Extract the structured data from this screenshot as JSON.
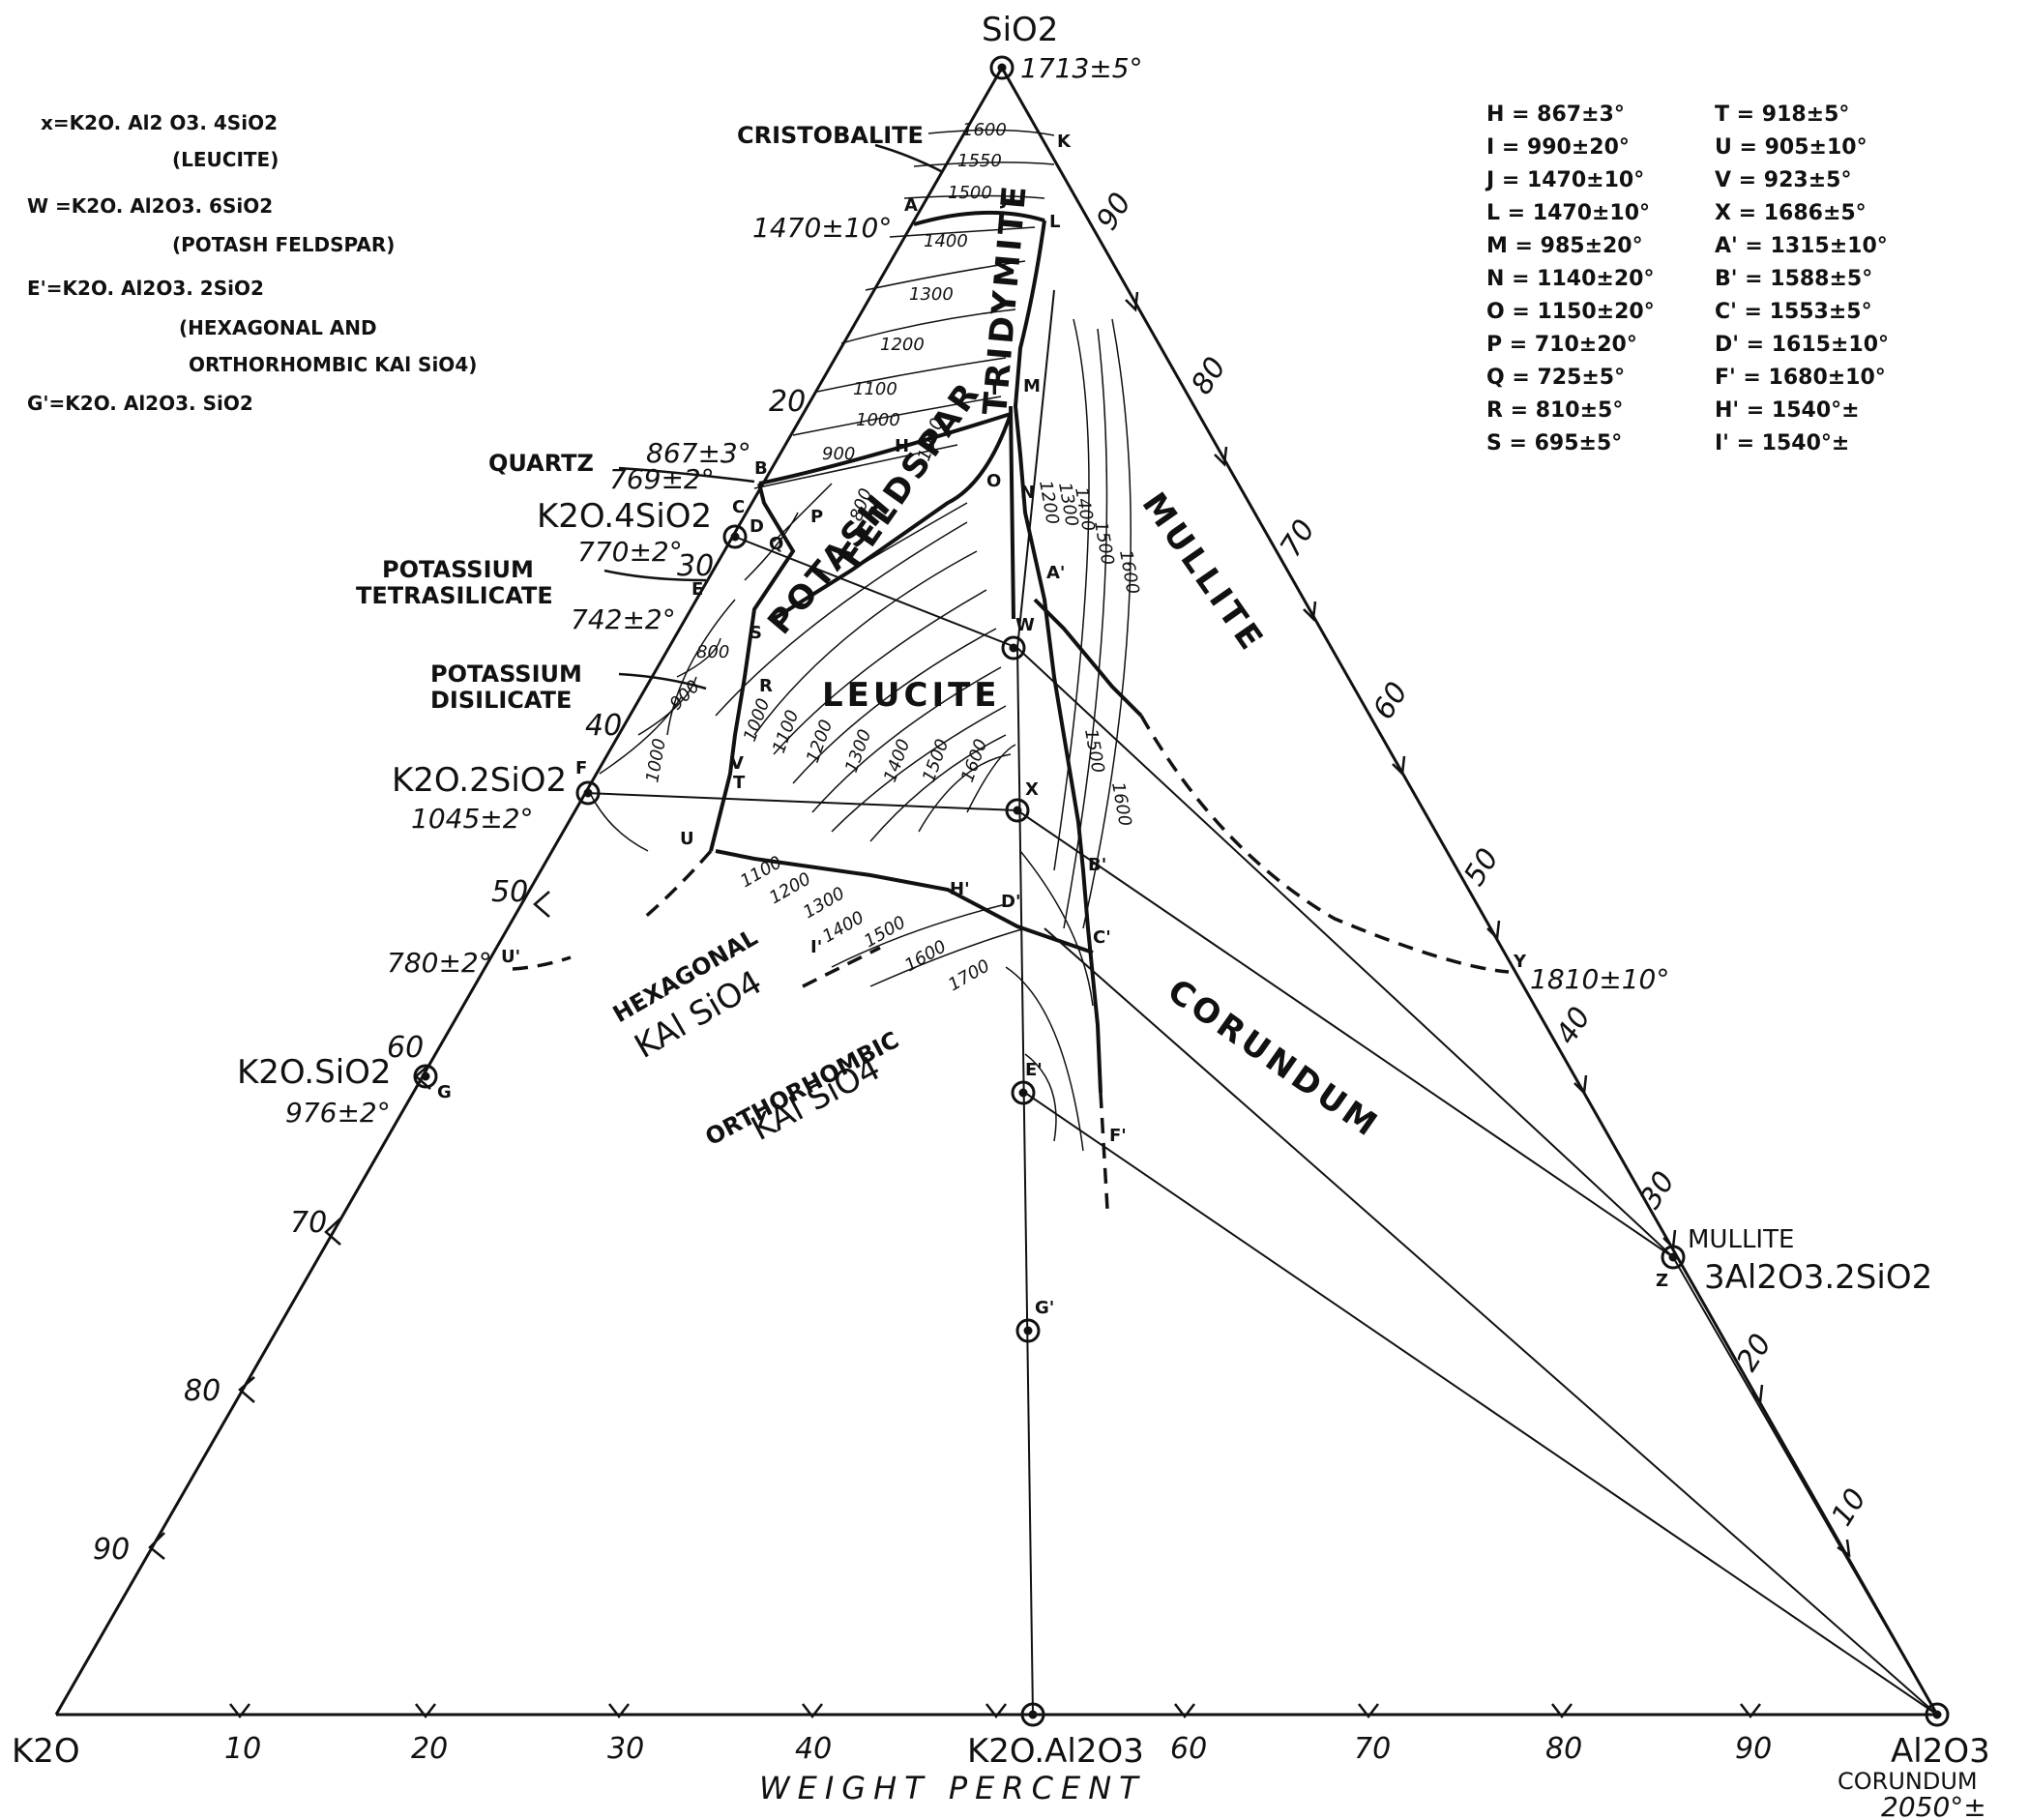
{
  "diagram": {
    "vertices": {
      "top": "SiO2",
      "top_temp": "1713±5°",
      "left": "K2O",
      "right": "Al2O3",
      "right_sub": "CORUNDUM",
      "right_temp": "2050°±"
    },
    "footer": "WEIGHT   PERCENT",
    "bottom_compound": "K2O.Al2O3",
    "ticks": [
      "10",
      "20",
      "30",
      "40",
      "50",
      "60",
      "70",
      "80",
      "90"
    ],
    "compounds": {
      "k2o_4sio2": "K2O.4SiO2",
      "k2o_2sio2": "K2O.2SiO2",
      "k2o_2sio2_temp": "1045±2°",
      "k2o_sio2": "K2O.SiO2",
      "k2o_sio2_temp": "976±2°",
      "mullite_name": "MULLITE",
      "mullite_formula": "3Al2O3.2SiO2"
    },
    "labels": {
      "cristobalite": "CRISTOBALITE",
      "cristo_temp": "1470±10°",
      "quartz": "QUARTZ",
      "quartz_t1": "867±3°",
      "quartz_t2": "769±2°",
      "k_tetra_1": "POTASSIUM",
      "k_tetra_2": "TETRASILICATE",
      "t_770": "770±2°",
      "t_742": "742±2°",
      "k_di_1": "POTASSIUM",
      "k_di_2": "DISILICATE",
      "hex_1": "HEXAGONAL",
      "hex_2": "KAl SiO4",
      "ortho_1": "ORTHORHOMBIC",
      "ortho_2": "KAl SiO4",
      "t_780": "780±2°",
      "t_1810": "1810±10°"
    },
    "fields": {
      "tridymite": "TRIDYMITE",
      "potash": "POTASH",
      "feldspar": "FELDSPAR",
      "leucite": "LEUCITE",
      "mullite": "MULLITE",
      "corundum": "CORUNDUM"
    },
    "formula_legend": [
      "x=K2O. Al2 O3. 4SiO2",
      "(LEUCITE)",
      "W =K2O. Al2O3. 6SiO2",
      "(POTASH FELDSPAR)",
      "E'=K2O. Al2O3. 2SiO2",
      "(HEXAGONAL AND",
      "ORTHORHOMBIC KAl SiO4)",
      "G'=K2O. Al2O3. SiO2"
    ],
    "temperature_key_left": [
      "H = 867±3°",
      "I = 990±20°",
      "J = 1470±10°",
      "L = 1470±10°",
      "M = 985±20°",
      "N = 1140±20°",
      "O = 1150±20°",
      "P = 710±20°",
      "Q = 725±5°",
      "R = 810±5°",
      "S = 695±5°"
    ],
    "temperature_key_right": [
      "T = 918±5°",
      "U = 905±10°",
      "V = 923±5°",
      "X = 1686±5°",
      "A' = 1315±10°",
      "B' = 1588±5°",
      "C' = 1553±5°",
      "D' = 1615±10°",
      "F' = 1680±10°",
      "H' = 1540°±",
      "I' = 1540°±"
    ],
    "isotherms": [
      "1600",
      "1550",
      "1500",
      "1400",
      "1300",
      "1200",
      "1100",
      "1000",
      "900",
      "800",
      "1700"
    ],
    "point_letters": [
      "A",
      "B",
      "C",
      "D",
      "E",
      "F",
      "G",
      "H",
      "I",
      "J",
      "K",
      "L",
      "M",
      "N",
      "O",
      "P",
      "Q",
      "R",
      "S",
      "T",
      "U",
      "V",
      "W",
      "X",
      "Y",
      "Z",
      "A'",
      "B'",
      "C'",
      "D'",
      "E'",
      "F'",
      "G'",
      "H'",
      "I'",
      "U'"
    ]
  }
}
